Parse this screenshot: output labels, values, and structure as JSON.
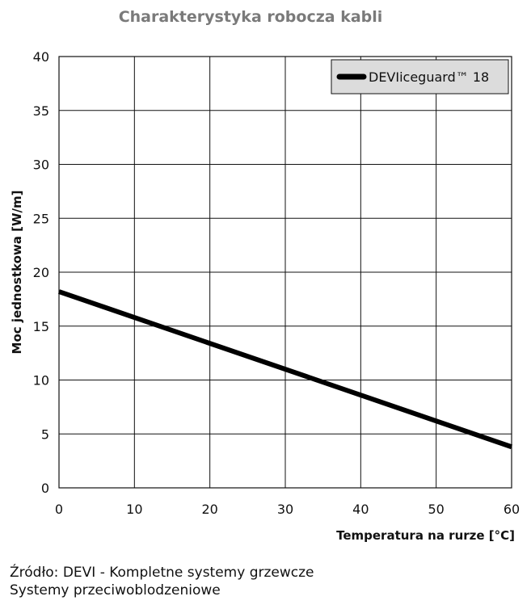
{
  "chart_data": {
    "type": "line",
    "title": "Charakterystyka robocza kabli",
    "xlabel": "Temperatura na rurze [°C]",
    "ylabel": "Moc jednostkowa [W/m]",
    "xlim": [
      0,
      60
    ],
    "ylim": [
      0,
      40
    ],
    "xticks": [
      "0",
      "10",
      "20",
      "30",
      "40",
      "50",
      "60"
    ],
    "yticks": [
      "0",
      "5",
      "10",
      "15",
      "20",
      "25",
      "30",
      "35",
      "40"
    ],
    "grid": true,
    "legend_position": "top-right",
    "series": [
      {
        "name": "DEVIiceguard™ 18",
        "x": [
          0,
          60
        ],
        "y": [
          18.2,
          3.8
        ]
      }
    ]
  },
  "source": {
    "line1": "Źródło: DEVI - Kompletne systemy grzewcze",
    "line2": "Systemy przeciwoblodzeniowe"
  }
}
